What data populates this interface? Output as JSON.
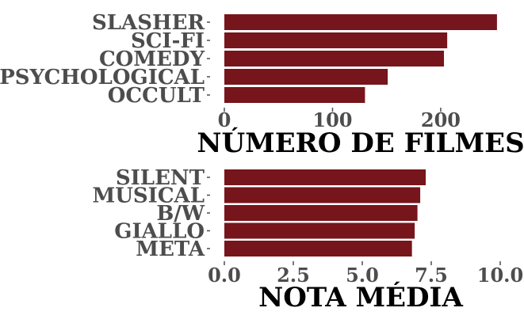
{
  "colors": {
    "bar": "#76151b",
    "text": "#4d4d4d",
    "title": "#000000"
  },
  "chart_data": [
    {
      "type": "bar",
      "orientation": "horizontal",
      "categories": [
        "SLASHER",
        "SCI-FI",
        "COMEDY",
        "PSYCHOLOGICAL",
        "OCCULT"
      ],
      "values": [
        252,
        206,
        203,
        151,
        130
      ],
      "xlabel": "NÚMERO DE FILMES",
      "xlim": [
        0,
        255
      ],
      "xticks": [
        0,
        100,
        200
      ],
      "xtick_labels": [
        "0",
        "100",
        "200"
      ],
      "grid": false
    },
    {
      "type": "bar",
      "orientation": "horizontal",
      "categories": [
        "SILENT",
        "MUSICAL",
        "B/W",
        "GIALLO",
        "META"
      ],
      "values": [
        7.3,
        7.1,
        7.0,
        6.9,
        6.8
      ],
      "xlabel": "NOTA MÉDIA",
      "xlim": [
        0,
        10
      ],
      "xticks": [
        0,
        2.5,
        5,
        7.5,
        10
      ],
      "xtick_labels": [
        "0.0",
        "2.5",
        "5.0",
        "7.5",
        "10.0"
      ],
      "grid": false
    }
  ]
}
